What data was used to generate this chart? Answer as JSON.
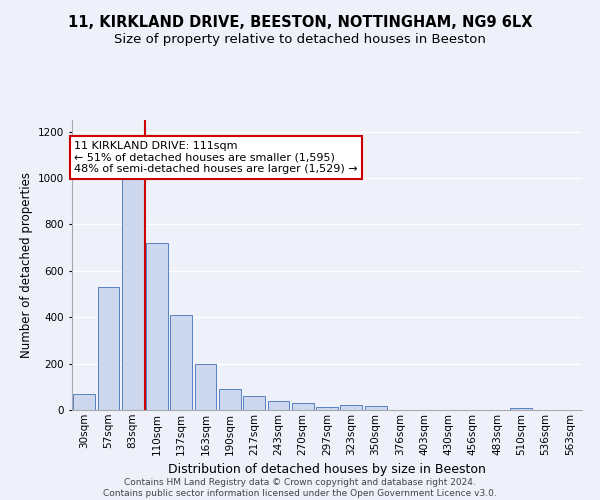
{
  "title": "11, KIRKLAND DRIVE, BEESTON, NOTTINGHAM, NG9 6LX",
  "subtitle": "Size of property relative to detached houses in Beeston",
  "xlabel": "Distribution of detached houses by size in Beeston",
  "ylabel": "Number of detached properties",
  "categories": [
    "30sqm",
    "57sqm",
    "83sqm",
    "110sqm",
    "137sqm",
    "163sqm",
    "190sqm",
    "217sqm",
    "243sqm",
    "270sqm",
    "297sqm",
    "323sqm",
    "350sqm",
    "376sqm",
    "403sqm",
    "430sqm",
    "456sqm",
    "483sqm",
    "510sqm",
    "536sqm",
    "563sqm"
  ],
  "values": [
    68,
    530,
    1010,
    720,
    410,
    200,
    90,
    60,
    38,
    32,
    15,
    22,
    18,
    0,
    0,
    0,
    0,
    0,
    10,
    0,
    0
  ],
  "bar_color": "#cdd8ee",
  "bar_edge_color": "#5580c0",
  "background_color": "#eef1fa",
  "grid_color": "#ffffff",
  "vline_color": "#cc0000",
  "vline_index": 3,
  "annotation_text": "11 KIRKLAND DRIVE: 111sqm\n← 51% of detached houses are smaller (1,595)\n48% of semi-detached houses are larger (1,529) →",
  "annotation_box_facecolor": "#ffffff",
  "annotation_box_edgecolor": "#cc0000",
  "ylim": [
    0,
    1250
  ],
  "yticks": [
    0,
    200,
    400,
    600,
    800,
    1000,
    1200
  ],
  "footer": "Contains HM Land Registry data © Crown copyright and database right 2024.\nContains public sector information licensed under the Open Government Licence v3.0.",
  "title_fontsize": 10.5,
  "subtitle_fontsize": 9.5,
  "xlabel_fontsize": 9,
  "ylabel_fontsize": 8.5,
  "tick_fontsize": 7.5,
  "footer_fontsize": 6.5,
  "ann_fontsize": 8
}
